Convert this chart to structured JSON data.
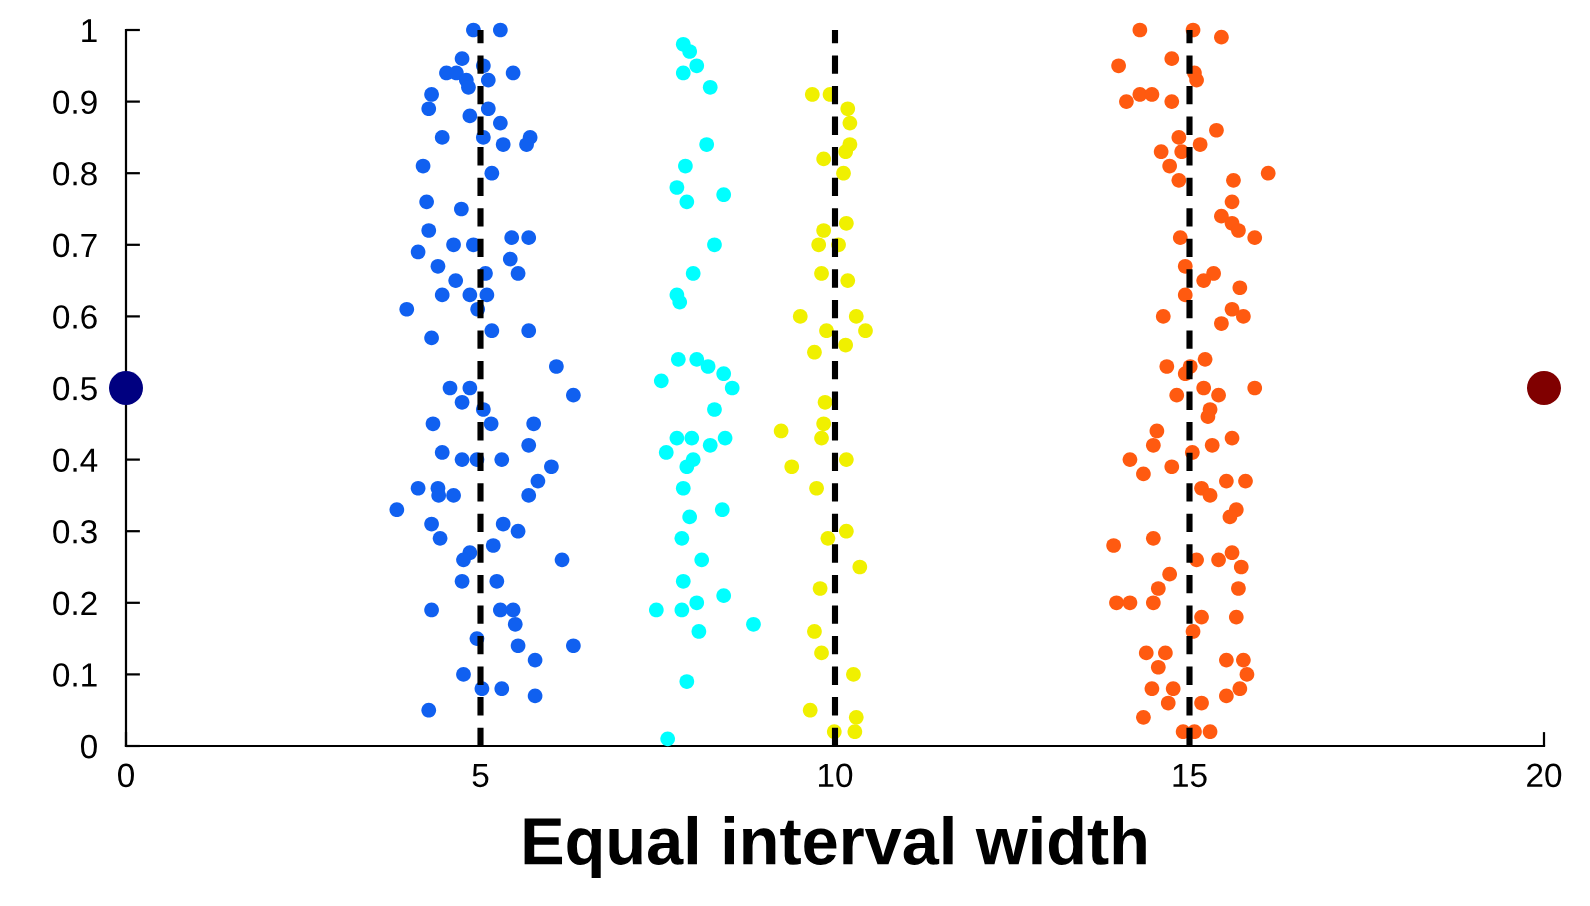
{
  "chart_data": {
    "type": "scatter",
    "xlabel": "Equal interval width",
    "xlim": [
      0,
      20
    ],
    "ylim": [
      0,
      1
    ],
    "xticks": [
      0,
      5,
      10,
      15,
      20
    ],
    "yticks": [
      0,
      0.1,
      0.2,
      0.3,
      0.4,
      0.5,
      0.6,
      0.7,
      0.8,
      0.9,
      1
    ],
    "grid": false,
    "legend": false,
    "marker": "circle",
    "ref_lines": [
      {
        "axis": "x",
        "value": 5,
        "color": "#000000",
        "line_style": "dashed"
      },
      {
        "axis": "x",
        "value": 10,
        "color": "#000000",
        "line_style": "dashed"
      },
      {
        "axis": "x",
        "value": 15,
        "color": "#000000",
        "line_style": "dashed"
      }
    ],
    "series": [
      {
        "color": "#000080",
        "x": [
          0
        ],
        "values": [
          0.5
        ]
      },
      {
        "color": "#1060f0",
        "x": [
          4.9,
          5.28,
          4.74,
          5.04,
          4.52,
          4.66,
          4.8,
          5.46,
          4.83,
          5.11,
          4.31,
          4.27,
          5.11,
          4.85,
          5.28,
          5.04,
          4.46,
          5.7,
          5.32,
          5.65,
          4.19,
          5.16,
          4.24,
          4.73,
          4.27,
          5.44,
          5.68,
          4.12,
          4.62,
          4.9,
          5.42,
          4.4,
          5.53,
          5.07,
          4.65,
          4.46,
          4.85,
          5.09,
          3.96,
          4.96,
          5.16,
          5.68,
          4.31,
          6.07,
          4.57,
          4.85,
          4.74,
          6.31,
          5.04,
          4.33,
          5.15,
          5.75,
          5.68,
          4.46,
          4.74,
          4.95,
          5.3,
          6.0,
          5.81,
          4.12,
          4.4,
          4.41,
          4.62,
          5.68,
          3.82,
          4.31,
          5.32,
          5.53,
          4.43,
          4.85,
          5.18,
          4.76,
          6.15,
          4.74,
          5.23,
          4.31,
          5.28,
          5.46,
          5.49,
          4.95,
          5.53,
          6.31,
          5.77,
          4.76,
          5.3,
          5.02,
          5.77,
          4.27
        ],
        "values": [
          1.0,
          1.0,
          0.96,
          0.95,
          0.94,
          0.94,
          0.93,
          0.94,
          0.92,
          0.93,
          0.91,
          0.89,
          0.89,
          0.88,
          0.87,
          0.85,
          0.85,
          0.85,
          0.84,
          0.84,
          0.81,
          0.8,
          0.76,
          0.75,
          0.72,
          0.71,
          0.71,
          0.69,
          0.7,
          0.7,
          0.68,
          0.67,
          0.66,
          0.66,
          0.65,
          0.63,
          0.63,
          0.63,
          0.61,
          0.61,
          0.58,
          0.58,
          0.57,
          0.53,
          0.5,
          0.5,
          0.48,
          0.49,
          0.47,
          0.45,
          0.45,
          0.45,
          0.42,
          0.41,
          0.4,
          0.4,
          0.4,
          0.39,
          0.37,
          0.36,
          0.36,
          0.35,
          0.35,
          0.35,
          0.33,
          0.31,
          0.31,
          0.3,
          0.29,
          0.27,
          0.28,
          0.26,
          0.26,
          0.23,
          0.23,
          0.19,
          0.19,
          0.19,
          0.17,
          0.15,
          0.14,
          0.14,
          0.12,
          0.1,
          0.08,
          0.08,
          0.07,
          0.05
        ]
      },
      {
        "color": "#00ffff",
        "x": [
          7.86,
          7.95,
          8.05,
          7.86,
          8.24,
          8.19,
          7.89,
          7.77,
          7.91,
          8.43,
          8.3,
          8.0,
          7.77,
          7.81,
          7.79,
          8.05,
          8.21,
          8.43,
          7.55,
          8.55,
          8.3,
          7.77,
          7.98,
          8.45,
          7.62,
          8.0,
          8.24,
          7.91,
          7.86,
          7.95,
          8.41,
          7.84,
          8.12,
          7.86,
          7.48,
          7.84,
          8.05,
          8.43,
          8.85,
          8.08,
          7.91,
          7.64
        ],
        "values": [
          0.98,
          0.97,
          0.95,
          0.94,
          0.92,
          0.84,
          0.81,
          0.78,
          0.76,
          0.77,
          0.7,
          0.66,
          0.63,
          0.62,
          0.54,
          0.54,
          0.53,
          0.52,
          0.51,
          0.5,
          0.47,
          0.43,
          0.43,
          0.43,
          0.41,
          0.4,
          0.42,
          0.39,
          0.36,
          0.32,
          0.33,
          0.29,
          0.26,
          0.23,
          0.19,
          0.19,
          0.2,
          0.21,
          0.17,
          0.16,
          0.09,
          0.01
        ]
      },
      {
        "color": "#f0f000",
        "x": [
          9.68,
          9.93,
          10.18,
          10.21,
          10.21,
          9.84,
          10.15,
          10.12,
          9.84,
          10.16,
          9.77,
          10.05,
          9.81,
          10.18,
          9.51,
          10.3,
          9.88,
          10.43,
          10.15,
          9.71,
          9.86,
          9.84,
          9.24,
          9.81,
          10.16,
          9.39,
          9.74,
          10.16,
          9.9,
          10.35,
          9.79,
          9.71,
          9.81,
          10.26,
          9.65,
          10.3,
          9.99,
          10.28
        ],
        "values": [
          0.91,
          0.91,
          0.89,
          0.87,
          0.84,
          0.82,
          0.83,
          0.8,
          0.72,
          0.73,
          0.7,
          0.7,
          0.66,
          0.65,
          0.6,
          0.6,
          0.58,
          0.58,
          0.56,
          0.55,
          0.48,
          0.45,
          0.44,
          0.43,
          0.4,
          0.39,
          0.36,
          0.3,
          0.29,
          0.25,
          0.22,
          0.16,
          0.13,
          0.1,
          0.05,
          0.04,
          0.02,
          0.02
        ]
      },
      {
        "color": "#ff5a10",
        "x": [
          14.3,
          15.05,
          15.45,
          14.0,
          14.75,
          15.07,
          15.1,
          14.11,
          14.3,
          14.47,
          14.75,
          15.38,
          14.85,
          15.15,
          14.6,
          14.89,
          14.72,
          16.11,
          14.85,
          15.62,
          15.6,
          15.45,
          15.6,
          15.69,
          15.92,
          14.87,
          14.94,
          15.34,
          15.2,
          15.71,
          14.94,
          14.63,
          15.6,
          15.76,
          15.45,
          15.22,
          14.68,
          15.01,
          14.94,
          14.82,
          15.2,
          15.92,
          15.41,
          15.29,
          15.26,
          14.54,
          15.6,
          14.49,
          15.04,
          15.32,
          14.16,
          14.35,
          14.75,
          15.79,
          15.52,
          15.17,
          15.29,
          15.66,
          15.57,
          14.49,
          13.93,
          15.1,
          15.41,
          15.6,
          15.73,
          14.72,
          14.56,
          15.69,
          13.97,
          14.16,
          14.49,
          15.17,
          15.66,
          15.05,
          14.39,
          14.66,
          14.56,
          15.52,
          15.76,
          15.81,
          15.71,
          14.47,
          14.77,
          15.52,
          14.7,
          15.17,
          14.35,
          14.91,
          15.07,
          15.29
        ],
        "values": [
          1.0,
          1.0,
          0.99,
          0.95,
          0.96,
          0.94,
          0.93,
          0.9,
          0.91,
          0.91,
          0.9,
          0.86,
          0.85,
          0.84,
          0.83,
          0.83,
          0.81,
          0.8,
          0.79,
          0.79,
          0.76,
          0.74,
          0.73,
          0.72,
          0.71,
          0.71,
          0.67,
          0.66,
          0.65,
          0.64,
          0.63,
          0.6,
          0.61,
          0.6,
          0.59,
          0.54,
          0.53,
          0.53,
          0.52,
          0.49,
          0.5,
          0.5,
          0.49,
          0.47,
          0.46,
          0.44,
          0.43,
          0.42,
          0.41,
          0.42,
          0.4,
          0.38,
          0.39,
          0.37,
          0.37,
          0.36,
          0.35,
          0.33,
          0.32,
          0.29,
          0.28,
          0.26,
          0.26,
          0.27,
          0.25,
          0.24,
          0.22,
          0.22,
          0.2,
          0.2,
          0.2,
          0.18,
          0.18,
          0.16,
          0.13,
          0.13,
          0.11,
          0.12,
          0.12,
          0.1,
          0.08,
          0.08,
          0.08,
          0.07,
          0.06,
          0.06,
          0.04,
          0.02,
          0.02,
          0.02
        ]
      },
      {
        "color": "#800000",
        "x": [
          20
        ],
        "values": [
          0.5
        ]
      }
    ]
  }
}
